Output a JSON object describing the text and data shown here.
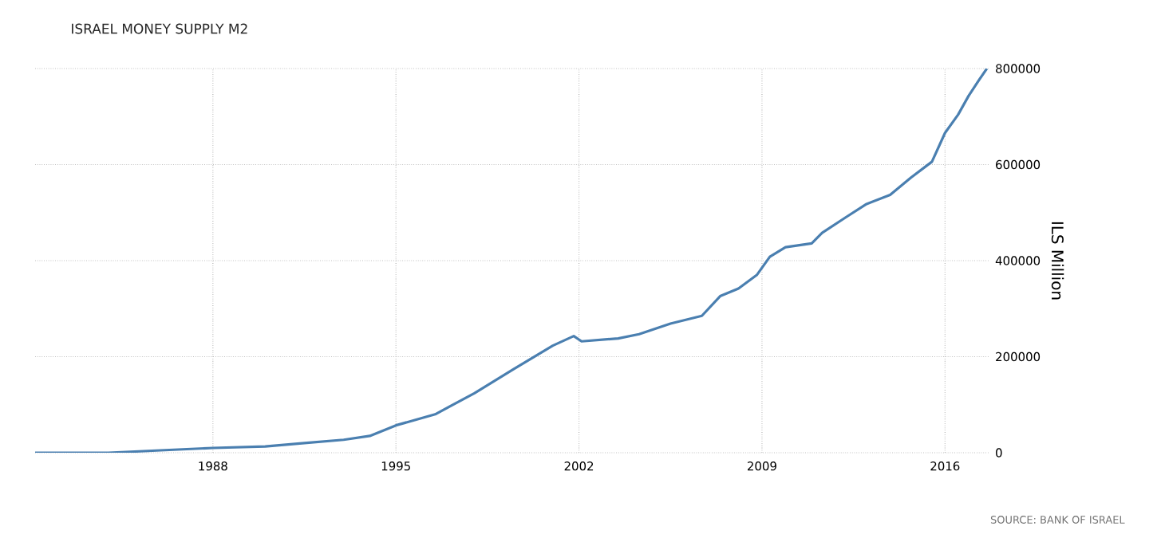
{
  "chart_data": {
    "type": "line",
    "title": "ISRAEL MONEY SUPPLY M2",
    "ylabel": "ILS Million",
    "annotations": [
      "SOURCE: BANK OF ISRAEL"
    ],
    "x": [
      1981.2,
      1984,
      1986,
      1988,
      1990,
      1991.5,
      1993,
      1994,
      1995,
      1996.5,
      1998,
      1999.5,
      2001,
      2001.8,
      2002.1,
      2003.5,
      2004.3,
      2005.5,
      2006.7,
      2007.4,
      2008.1,
      2008.8,
      2009.3,
      2009.9,
      2010.9,
      2011.3,
      2012.2,
      2013.0,
      2013.9,
      2014.7,
      2015.5,
      2016.0,
      2016.5,
      2016.9,
      2017.3,
      2017.6
    ],
    "series": [
      {
        "color": "#4a7fb0",
        "values": [
          0,
          0,
          5000,
          10000,
          13000,
          20000,
          27000,
          35000,
          57000,
          80000,
          124000,
          174000,
          223000,
          243000,
          232000,
          238000,
          247000,
          269000,
          285000,
          326000,
          342000,
          370000,
          408000,
          428000,
          436000,
          458000,
          490000,
          518000,
          537000,
          573000,
          606000,
          666000,
          704000,
          743000,
          776000,
          800000
        ]
      }
    ],
    "xlim": [
      1981.2,
      2017.7
    ],
    "xticks": [
      1988,
      1995,
      2002,
      2009,
      2016
    ],
    "ylim": [
      0,
      800000
    ],
    "yticks": [
      0,
      200000,
      400000,
      600000,
      800000
    ],
    "grid": true,
    "marker": "none",
    "line_style": "solid"
  }
}
